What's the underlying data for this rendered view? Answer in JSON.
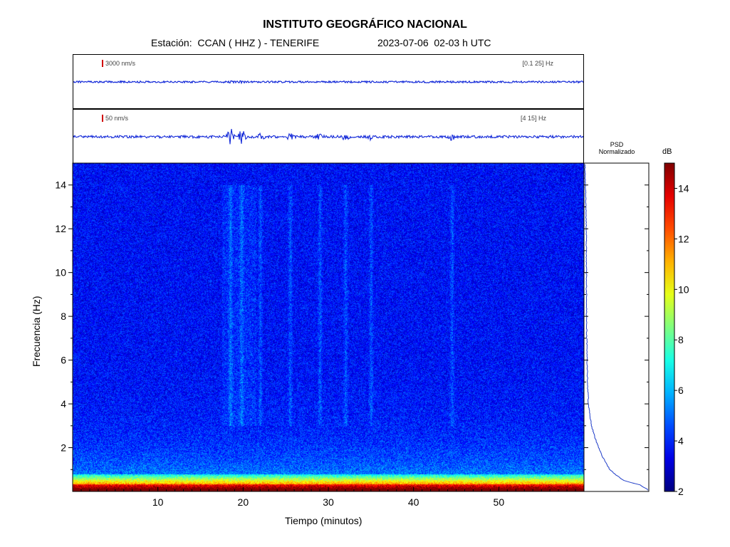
{
  "header": {
    "title": "INSTITUTO GEOGRÁFICO NACIONAL",
    "station": "Estación:  CCAN ( HHZ ) - TENERIFE",
    "datetime": "2023-07-06  02-03 h UTC"
  },
  "trace_top": {
    "scale": "3000 nm/s",
    "band": "[0.1 25]  Hz"
  },
  "trace_bottom": {
    "scale": "50 nm/s",
    "band": "[4 15]  Hz"
  },
  "psd_panel": {
    "title_line1": "PSD",
    "title_line2": "Normalizado"
  },
  "colorbar": {
    "unit": "dB",
    "ticks": [
      "2",
      "4",
      "6",
      "8",
      "10",
      "12",
      "14"
    ]
  },
  "colors": {
    "trace": "#1228d8",
    "psd_line": "#1e3cc8",
    "frame": "#000000"
  },
  "chart_data": {
    "type": "heatmap",
    "xlabel": "Tiempo (minutos)",
    "ylabel": "Frecuencia (Hz)",
    "xlim": [
      0,
      60
    ],
    "ylim": [
      0,
      15
    ],
    "x_ticks": [
      "10",
      "20",
      "30",
      "40",
      "50"
    ],
    "y_ticks": [
      "2",
      "4",
      "6",
      "8",
      "10",
      "12",
      "14"
    ],
    "color_range_db": [
      2,
      15
    ],
    "colormap": "jet",
    "psd_normalized": {
      "freq_hz": [
        0.1,
        0.3,
        0.5,
        0.8,
        1.0,
        1.5,
        2.0,
        2.5,
        3.0,
        3.5,
        4.0,
        5.0,
        6.0,
        7.0,
        8.0,
        9.0,
        10.0,
        11.0,
        12.0,
        13.0,
        14.0,
        15.0
      ],
      "value": [
        1.0,
        0.88,
        0.62,
        0.48,
        0.4,
        0.3,
        0.22,
        0.16,
        0.11,
        0.08,
        0.06,
        0.045,
        0.038,
        0.033,
        0.03,
        0.028,
        0.027,
        0.026,
        0.025,
        0.02,
        0.01,
        0.005
      ]
    },
    "energy_bursts_minutes": [
      18.5,
      19.8,
      22.0,
      25.5,
      29.0,
      32.0,
      35.0,
      44.5
    ]
  }
}
